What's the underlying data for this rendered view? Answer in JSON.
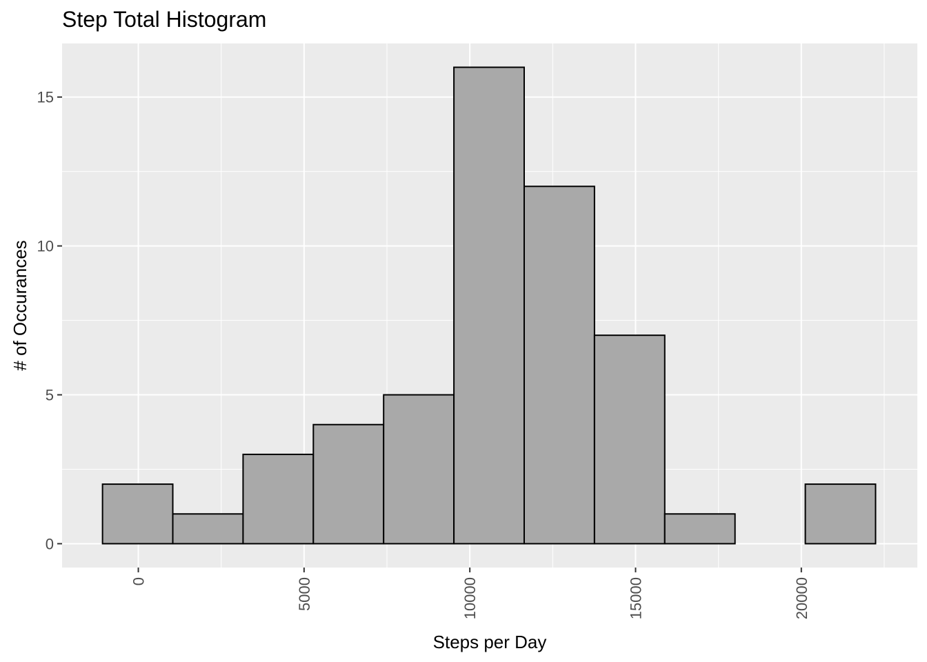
{
  "chart_data": {
    "type": "bar",
    "title": "Step Total Histogram",
    "xlabel": "Steps per Day",
    "ylabel": "# of Occurances",
    "bin_edges": [
      -1080,
      1040,
      3160,
      5280,
      7400,
      9520,
      11640,
      13760,
      15880,
      18000,
      20120,
      22240
    ],
    "counts": [
      2,
      1,
      3,
      4,
      5,
      16,
      12,
      7,
      1,
      0,
      2
    ],
    "xlim": [
      -2300,
      23500
    ],
    "ylim": [
      -0.8,
      16.8
    ],
    "x_ticks": [
      0,
      5000,
      10000,
      15000,
      20000
    ],
    "x_tick_labels": [
      "0",
      "5000",
      "10000",
      "15000",
      "20000"
    ],
    "y_ticks": [
      0,
      5,
      10,
      15
    ],
    "y_tick_labels": [
      "0",
      "5",
      "10",
      "15"
    ],
    "grid": true,
    "colors": {
      "panel": "#ebebeb",
      "grid": "#ffffff",
      "bar_fill": "#a9a9a9",
      "bar_stroke": "#000000"
    }
  }
}
